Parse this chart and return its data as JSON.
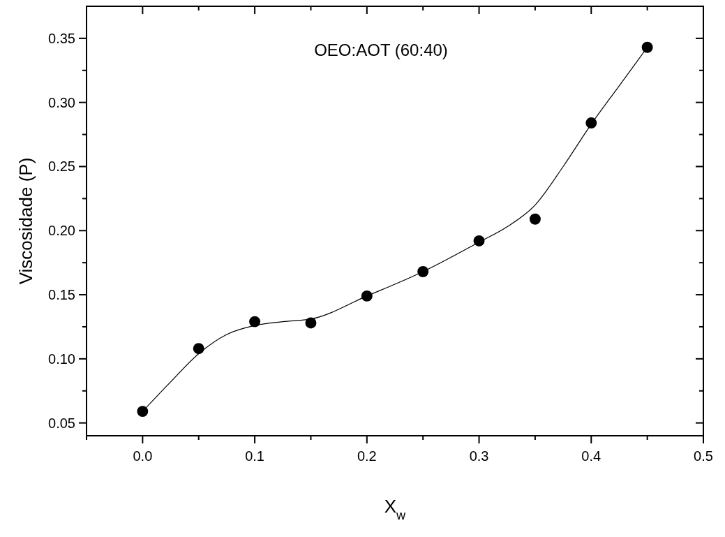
{
  "chart_data": {
    "type": "scatter",
    "xlabel": "X$_{w}$",
    "ylabel": "Viscosidade (P)",
    "annotations": [
      "OEO:AOT (60:40)"
    ],
    "x": [
      0,
      0.05,
      0.1,
      0.15,
      0.2,
      0.25,
      0.3,
      0.35,
      0.4,
      0.45
    ],
    "series": [
      {
        "color": "#000000",
        "marker": "circle",
        "values": [
          0.059,
          0.108,
          0.129,
          0.128,
          0.149,
          0.168,
          0.192,
          0.209,
          0.284,
          0.343
        ]
      },
      {
        "type": "line",
        "color": "#000000",
        "x": [
          0,
          0.025,
          0.05,
          0.075,
          0.1,
          0.125,
          0.15,
          0.2,
          0.25,
          0.3,
          0.325,
          0.35,
          0.375,
          0.4,
          0.425,
          0.45
        ],
        "values": [
          0.059,
          0.082,
          0.104,
          0.119,
          0.126,
          0.129,
          0.131,
          0.149,
          0.168,
          0.191,
          0.203,
          0.22,
          0.25,
          0.283,
          0.313,
          0.343
        ]
      }
    ],
    "xlim": [
      -0.05,
      0.5
    ],
    "ylim": [
      0.04,
      0.375
    ],
    "xticks": [
      {
        "value": -0.05,
        "label": null
      },
      "0.0",
      {
        "value": 0.05,
        "label": null
      },
      {
        "value": 0.1,
        "label": "0.1"
      },
      {
        "value": 0.15,
        "label": null
      },
      {
        "value": 0.2,
        "label": "0.2"
      },
      {
        "value": 0.25,
        "label": null
      },
      {
        "value": 0.3,
        "label": "0.3"
      },
      {
        "value": 0.35,
        "label": null
      },
      {
        "value": 0.4,
        "label": "0.4"
      },
      {
        "value": 0.45,
        "label": null
      },
      0.5
    ],
    "yticks": [
      {
        "value": 0.05,
        "label": "0.05"
      },
      {
        "value": 0.075,
        "label": null
      },
      {
        "value": 0.1,
        "label": "0.10"
      },
      {
        "value": 0.125,
        "label": null
      },
      {
        "value": 0.15,
        "label": "0.15"
      },
      {
        "value": 0.175,
        "label": null
      },
      {
        "value": 0.2,
        "label": "0.20"
      },
      {
        "value": 0.225,
        "label": null
      },
      {
        "value": 0.25,
        "label": "0.25"
      },
      {
        "value": 0.275,
        "label": null
      },
      {
        "value": 0.3,
        "label": "0.30"
      },
      {
        "value": 0.325,
        "label": null
      },
      {
        "value": 0.35,
        "label": "0.35"
      }
    ],
    "grid": false
  }
}
